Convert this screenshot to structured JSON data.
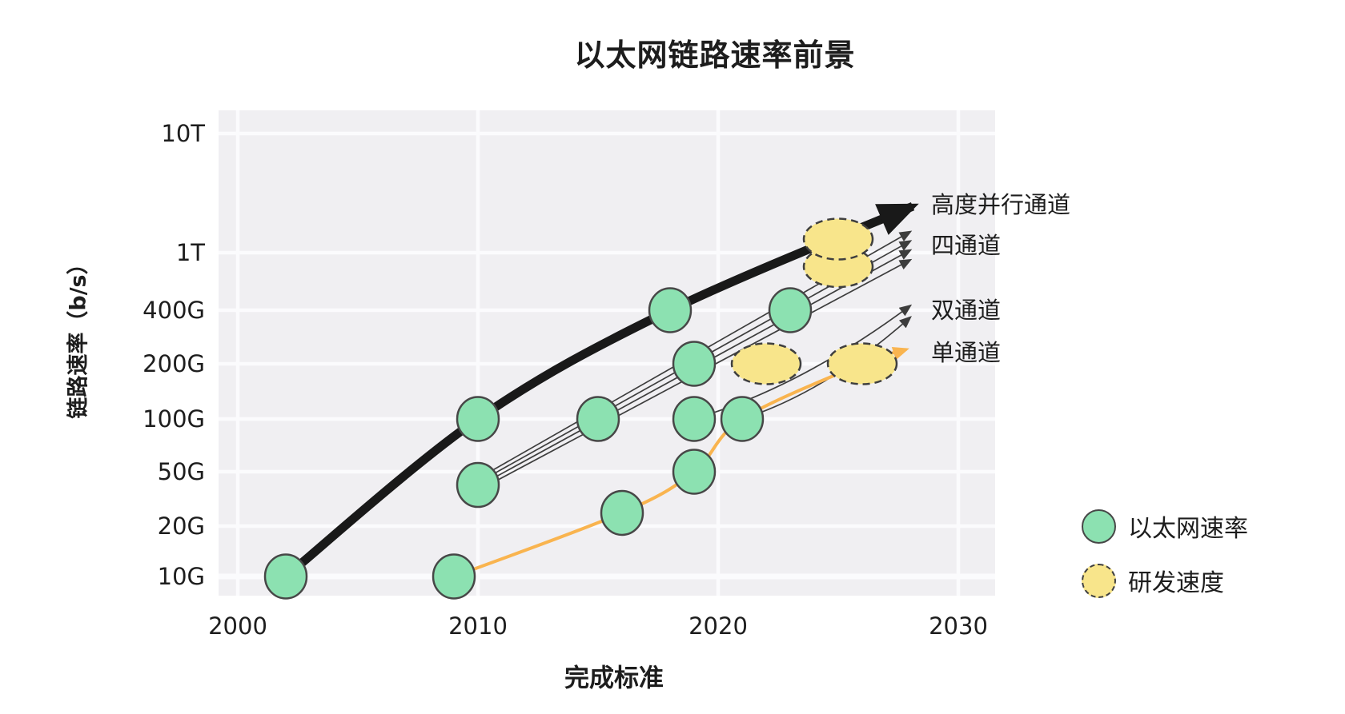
{
  "chart": {
    "title": "以太网链路速率前景",
    "x_axis": {
      "label": "完成标准",
      "ticks": [
        "2000",
        "2010",
        "2020",
        "2030"
      ]
    },
    "y_axis": {
      "label": "链路速率（b/s）",
      "ticks": [
        "10G",
        "20G",
        "50G",
        "100G",
        "200G",
        "400G",
        "1T",
        "10T"
      ]
    },
    "legend": [
      {
        "label": "以太网速率",
        "swatch": "green-circle"
      },
      {
        "label": "研发速度",
        "swatch": "yellow-dashed-circle"
      }
    ],
    "annotations": [
      {
        "text": "高度并行通道",
        "gbps": 2600
      },
      {
        "text": "四通道",
        "gbps": 1180
      },
      {
        "text": "双通道",
        "gbps": 410
      },
      {
        "text": "单通道",
        "gbps": 235
      }
    ]
  },
  "chart_data": {
    "type": "scatter",
    "title": "以太网链路速率前景",
    "xlabel": "完成标准",
    "ylabel": "链路速率（b/s）",
    "x_ticks": [
      2000,
      2010,
      2020,
      2030
    ],
    "y_ticks_gbps": [
      10,
      20,
      50,
      100,
      200,
      400,
      1000,
      10000
    ],
    "y_scale": "log-like",
    "grid": true,
    "series": [
      {
        "name": "以太网速率",
        "kind": "points",
        "marker": "green-circle",
        "points": [
          {
            "year": 2002,
            "speed": "10G",
            "gbps": 10
          },
          {
            "year": 2009,
            "speed": "10G",
            "gbps": 10
          },
          {
            "year": 2010,
            "speed": "40G",
            "gbps": 40
          },
          {
            "year": 2010,
            "speed": "100G",
            "gbps": 100
          },
          {
            "year": 2015,
            "speed": "100G",
            "gbps": 100
          },
          {
            "year": 2016,
            "speed": "25G",
            "gbps": 25
          },
          {
            "year": 2018,
            "speed": "400G",
            "gbps": 400
          },
          {
            "year": 2019,
            "speed": "50G",
            "gbps": 50
          },
          {
            "year": 2019,
            "speed": "100G",
            "gbps": 100
          },
          {
            "year": 2019,
            "speed": "200G",
            "gbps": 200
          },
          {
            "year": 2021,
            "speed": "100G",
            "gbps": 100
          },
          {
            "year": 2023,
            "speed": "400G",
            "gbps": 400
          }
        ]
      },
      {
        "name": "研发速度",
        "kind": "points",
        "marker": "yellow-dashed-ellipse",
        "points": [
          {
            "year": 2022,
            "speed": "200G",
            "gbps": 200
          },
          {
            "year": 2025,
            "speed": "~800G",
            "gbps": 800
          },
          {
            "year": 2025,
            "speed": "~1.3T",
            "gbps": 1300
          },
          {
            "year": 2026,
            "speed": "200G",
            "gbps": 200
          }
        ]
      },
      {
        "name": "高度并行通道",
        "kind": "trend",
        "style": "thick-black-arrow",
        "points": [
          {
            "year": 2002,
            "gbps": 10
          },
          {
            "year": 2010,
            "gbps": 100
          },
          {
            "year": 2018,
            "gbps": 400
          },
          {
            "year": 2028.1,
            "gbps": 2450
          }
        ]
      },
      {
        "name": "四通道",
        "kind": "trend",
        "style": "thin-black-fan",
        "lanes": 4,
        "start": {
          "year": 2010,
          "gbps": 40
        },
        "tips": [
          {
            "year": 2028,
            "gbps": 1500
          },
          {
            "year": 2028,
            "gbps": 1250
          },
          {
            "year": 2028,
            "gbps": 1050
          },
          {
            "year": 2028,
            "gbps": 890
          }
        ]
      },
      {
        "name": "双通道",
        "kind": "trend",
        "style": "thin-black-curves",
        "curves": [
          {
            "from": {
              "year": 2019,
              "gbps": 100
            },
            "to": {
              "year": 2028,
              "gbps": 430
            }
          },
          {
            "from": {
              "year": 2021,
              "gbps": 100
            },
            "to": {
              "year": 2028,
              "gbps": 365
            }
          }
        ]
      },
      {
        "name": "单通道",
        "kind": "trend",
        "style": "orange-arrow",
        "points": [
          {
            "year": 2009,
            "gbps": 10
          },
          {
            "year": 2016,
            "gbps": 25
          },
          {
            "year": 2019,
            "gbps": 50
          },
          {
            "year": 2021,
            "gbps": 100
          },
          {
            "year": 2026,
            "gbps": 200
          },
          {
            "year": 2027.8,
            "gbps": 240
          }
        ]
      }
    ]
  },
  "colors": {
    "ethernet_fill": "#8ce1b1",
    "marker_stroke": "#474747",
    "research_fill": "#f8e58b",
    "research_stroke": "#3f3f3f",
    "single_lane_orange": "#f9b44f",
    "trend_black": "#191919",
    "thin_line": "#3d3d3d",
    "plot_bg": "#f0eff2",
    "gridline": "#fbfbfd",
    "text": "#1d1d1d"
  }
}
